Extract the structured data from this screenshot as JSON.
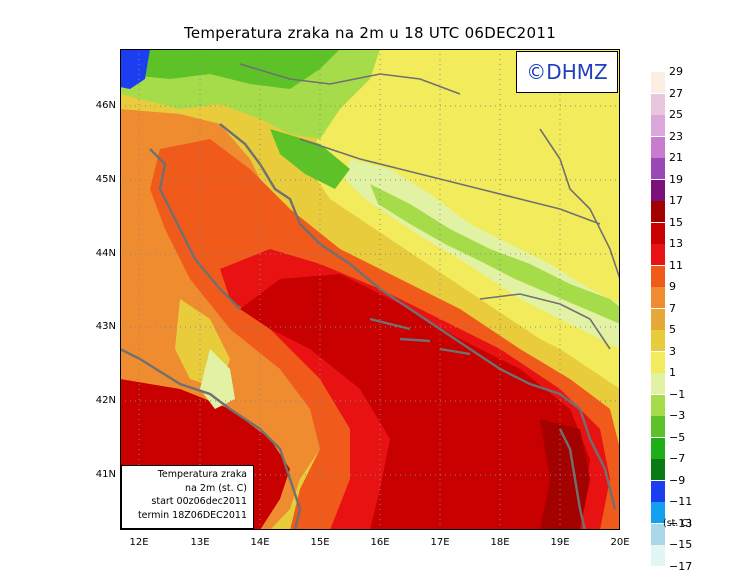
{
  "title": "Temperatura zraka na 2m u 18 UTC 06DEC2011",
  "copyright": "©DHMZ",
  "info_box": {
    "line1": "Temperatura zraka",
    "line2": "na 2m (st. C)",
    "line3": "start 00z06dec2011",
    "line4": "termin 18Z06DEC2011"
  },
  "lat_labels": [
    "46N",
    "45N",
    "44N",
    "43N",
    "42N",
    "41N"
  ],
  "lon_labels": [
    "12E",
    "13E",
    "14E",
    "15E",
    "16E",
    "17E",
    "18E",
    "19E",
    "20E"
  ],
  "legend": {
    "units": "(st. C)",
    "labels": [
      "29",
      "27",
      "25",
      "23",
      "21",
      "19",
      "17",
      "15",
      "13",
      "11",
      "9",
      "7",
      "5",
      "3",
      "1",
      "−1",
      "−3",
      "−5",
      "−7",
      "−9",
      "−11",
      "−13",
      "−15",
      "−17"
    ],
    "colors": [
      "#fbeee3",
      "#e8c6de",
      "#dca8dc",
      "#c77ccf",
      "#9a48b5",
      "#7a107a",
      "#a30000",
      "#c80000",
      "#e81212",
      "#f05a1a",
      "#f08c30",
      "#e8a838",
      "#e8cc3c",
      "#f2ec5c",
      "#e2f2a4",
      "#a6dc4a",
      "#5cc228",
      "#1eae1a",
      "#0a7a14",
      "#1a3ef0",
      "#14a0f0",
      "#a8d8e8",
      "#e2f6f6"
    ]
  }
}
